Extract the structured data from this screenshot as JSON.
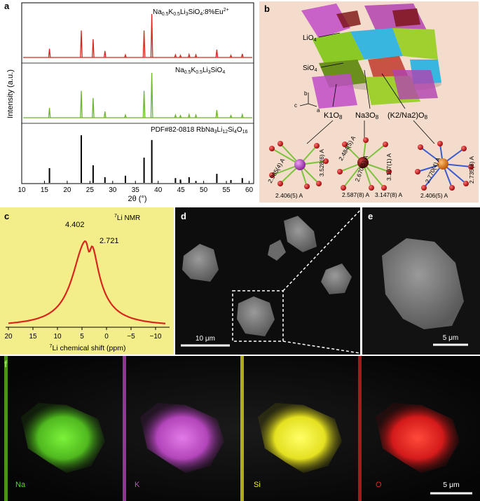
{
  "panel_labels": {
    "a": "a",
    "b": "b",
    "c": "c",
    "d": "d",
    "e": "e",
    "f": "f"
  },
  "panel_a": {
    "ylabel": "Intensity (a.u.)",
    "xlabel": "2θ (°)",
    "xticks": [
      "10",
      "15",
      "20",
      "25",
      "30",
      "35",
      "40",
      "45",
      "50",
      "55",
      "60"
    ],
    "series_labels": {
      "eu": {
        "a": "Na",
        "s1": "0.5",
        "b": "K",
        "s2": "0.5",
        "c": "Li",
        "s3": "3",
        "d": "SiO",
        "s4": "4",
        "e": ":8%Eu",
        "sup": "2+"
      },
      "pure": {
        "a": "Na",
        "s1": "0.5",
        "b": "K",
        "s2": "0.5",
        "c": "Li",
        "s3": "3",
        "d": "SiO",
        "s4": "4"
      },
      "pdf": {
        "a": "PDF#82-0818 RbNa",
        "s1": "3",
        "b": "Li",
        "s2": "12",
        "c": "Si",
        "s3": "4",
        "d": "O",
        "s4": "16"
      }
    },
    "colors": {
      "eu": "#d7261e",
      "pure": "#6cb52d",
      "pdf": "#000000"
    }
  },
  "chart_data": [
    {
      "type": "line",
      "title": "Powder XRD patterns",
      "xlabel": "2θ (°)",
      "ylabel": "Intensity (a.u.)",
      "xlim": [
        10,
        61
      ],
      "peaks_2theta": [
        16.1,
        23.1,
        25.7,
        28.3,
        32.8,
        36.9,
        38.6,
        43.8,
        44.9,
        46.8,
        48.3,
        52.9,
        56.0,
        58.5
      ],
      "series": [
        {
          "name": "Na0.5K0.5Li3SiO4:8%Eu2+",
          "relative_intensity": [
            0.2,
            0.62,
            0.42,
            0.15,
            0.06,
            0.62,
            1.0,
            0.06,
            0.05,
            0.07,
            0.06,
            0.18,
            0.05,
            0.08
          ]
        },
        {
          "name": "Na0.5K0.5Li3SiO4",
          "relative_intensity": [
            0.22,
            0.6,
            0.44,
            0.14,
            0.06,
            0.6,
            1.0,
            0.06,
            0.05,
            0.07,
            0.06,
            0.17,
            0.05,
            0.07
          ]
        },
        {
          "name": "PDF#82-0818 RbNa3Li12Si4O16",
          "relative_intensity": [
            0.31,
            1.0,
            0.37,
            0.12,
            0.15,
            0.53,
            0.9,
            0.1,
            0.07,
            0.12,
            0.04,
            0.19,
            0.06,
            0.1
          ]
        }
      ]
    },
    {
      "type": "line",
      "title": "7Li NMR",
      "xlabel": "7Li chemical shift (ppm)",
      "xlim": [
        20,
        -12
      ],
      "xticks": [
        "20",
        "15",
        "10",
        "5",
        "0",
        "−5",
        "−10"
      ],
      "peaks": [
        {
          "x": 4.402,
          "label": "4.402"
        },
        {
          "x": 2.721,
          "label": "2.721"
        }
      ],
      "x": [
        20,
        15,
        12,
        10,
        8,
        7,
        6,
        5,
        4.402,
        3.5,
        2.721,
        2,
        0,
        -2,
        -5,
        -8,
        -12
      ],
      "y": [
        0.02,
        0.06,
        0.12,
        0.22,
        0.45,
        0.62,
        0.82,
        0.98,
        1.0,
        0.96,
        0.97,
        0.8,
        0.42,
        0.2,
        0.09,
        0.04,
        0.02
      ]
    }
  ],
  "panel_b": {
    "labels": {
      "lio4": {
        "a": "LiO",
        "s": "4"
      },
      "sio4": {
        "a": "SiO",
        "s": "4"
      },
      "k1o8": {
        "a": "K1O",
        "s": "8"
      },
      "na3o8": {
        "a": "Na3O",
        "s": "8"
      },
      "k2na2o8": {
        "a": "(K2/Na2)O",
        "s": "8"
      },
      "axis_a": "a",
      "axis_b": "b",
      "axis_c": "c"
    },
    "bond_lengths": {
      "k1": [
        "2.985(4) A",
        "3.528(6) A",
        "2.406(5) A"
      ],
      "na3": [
        "2.484(5) A",
        "2.670(5) A",
        "3.167(1) A",
        "2.587(8) A",
        "3.147(8) A"
      ],
      "k2": [
        "2.770(4) A",
        "2.735(6) A",
        "2.406(5) A"
      ]
    },
    "atom_colors": {
      "k1": "#b040c0",
      "na3": "#8a1010",
      "k2": "#e07010",
      "o": "#cc1a1a"
    }
  },
  "panel_c": {
    "nmr_label": {
      "sup": "7",
      "text": "Li NMR"
    },
    "peak_labels": [
      "4.402",
      "2.721"
    ],
    "xlabel": {
      "sup": "7",
      "text": "Li chemical shift (ppm)"
    },
    "bg": "#f3ee8a",
    "line_color": "#d7261e"
  },
  "panel_d": {
    "scalebar": "10 μm"
  },
  "panel_e": {
    "scalebar": "5 μm"
  },
  "panel_f": {
    "elements": [
      "Na",
      "K",
      "Si",
      "O"
    ],
    "scalebar": "5 μm",
    "colors": {
      "Na": "#5fd22a",
      "K": "#c24fc9",
      "Si": "#f2ee24",
      "O": "#e52222"
    }
  }
}
